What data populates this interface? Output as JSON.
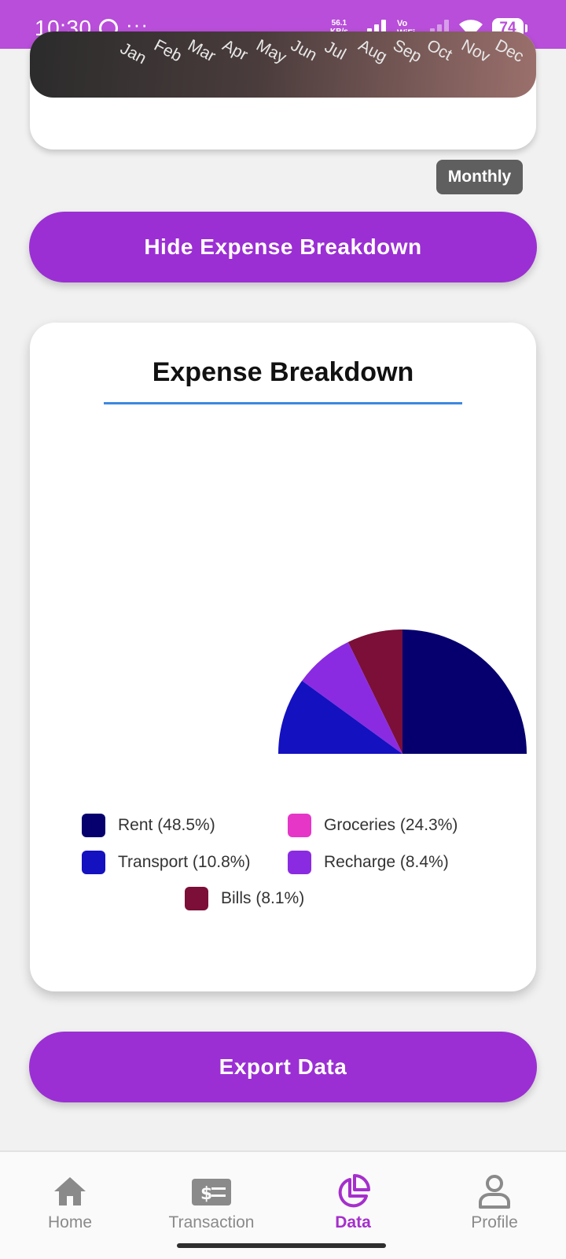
{
  "status_bar": {
    "time": "10:30",
    "dots": "···",
    "net_speed_value": "56.1",
    "net_speed_unit": "KB/s",
    "vo": "Vo",
    "wifi_text": "WiFi",
    "battery": "74"
  },
  "top_chart": {
    "months": [
      "Jan",
      "Feb",
      "Mar",
      "Apr",
      "May",
      "Jun",
      "Jul",
      "Aug",
      "Sep",
      "Oct",
      "Nov",
      "Dec"
    ]
  },
  "period_badge": "Monthly",
  "hide_breakdown_label": "Hide Expense Breakdown",
  "expense_card": {
    "title": "Expense Breakdown"
  },
  "chart_data": {
    "type": "pie",
    "title": "Expense Breakdown",
    "categories": [
      "Rent",
      "Groceries",
      "Transport",
      "Recharge",
      "Bills"
    ],
    "values": [
      48.5,
      24.3,
      10.8,
      8.4,
      8.1
    ],
    "unit": "%",
    "colors": [
      "#06006e",
      "#e536c8",
      "#1411c0",
      "#8a2be2",
      "#7b0f38"
    ],
    "legend": [
      {
        "label": "Rent (48.5%)",
        "color": "#06006e"
      },
      {
        "label": "Groceries (24.3%)",
        "color": "#e536c8"
      },
      {
        "label": "Transport (10.8%)",
        "color": "#1411c0"
      },
      {
        "label": "Recharge (8.4%)",
        "color": "#8a2be2"
      },
      {
        "label": "Bills (8.1%)",
        "color": "#7b0f38"
      }
    ],
    "legend_position": "bottom"
  },
  "export_label": "Export Data",
  "bottom_nav": {
    "items": [
      {
        "label": "Home",
        "icon": "home-icon"
      },
      {
        "label": "Transaction",
        "icon": "transaction-icon"
      },
      {
        "label": "Data",
        "icon": "pie-chart-icon",
        "active": true
      },
      {
        "label": "Profile",
        "icon": "profile-icon"
      }
    ],
    "active_color": "#a52fcc",
    "inactive_color": "#8a8a8a"
  },
  "colors": {
    "status_bar": "#b84ed9",
    "primary_button": "#9b2fd3",
    "title_underline": "#3d88df"
  }
}
